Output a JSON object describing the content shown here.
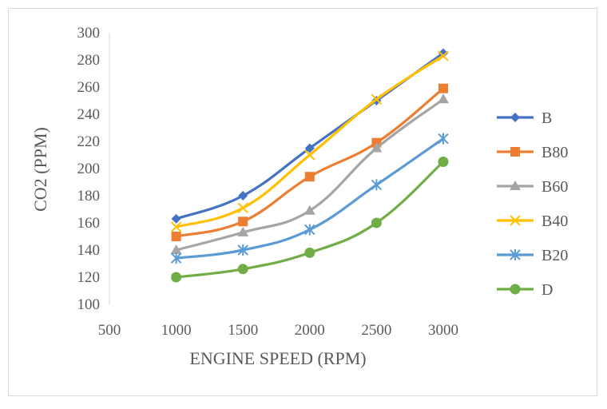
{
  "chart_data": {
    "type": "line",
    "xlabel": "ENGINE SPEED (RPM)",
    "ylabel": "CO2 (PPM)",
    "xlim": [
      500,
      3000
    ],
    "ylim": [
      100,
      300
    ],
    "x_ticks": [
      "500",
      "1000",
      "1500",
      "2000",
      "2500",
      "3000"
    ],
    "y_ticks": [
      "100",
      "120",
      "140",
      "160",
      "180",
      "200",
      "220",
      "240",
      "260",
      "280",
      "300"
    ],
    "x": [
      1000,
      1500,
      2000,
      2500,
      3000
    ],
    "legend_position": "right",
    "grid": false,
    "series": [
      {
        "name": "B",
        "values": [
          163,
          180,
          215,
          250,
          285
        ],
        "color": "#4472C4",
        "marker": "diamond"
      },
      {
        "name": "B80",
        "values": [
          150,
          161,
          194,
          219,
          259
        ],
        "color": "#ED7D31",
        "marker": "square"
      },
      {
        "name": "B60",
        "values": [
          140,
          153,
          169,
          215,
          251
        ],
        "color": "#A5A5A5",
        "marker": "triangle"
      },
      {
        "name": "B40",
        "values": [
          157,
          171,
          210,
          251,
          283
        ],
        "color": "#FFC000",
        "marker": "x"
      },
      {
        "name": "B20",
        "values": [
          134,
          140,
          155,
          188,
          222
        ],
        "color": "#5B9BD5",
        "marker": "asterisk"
      },
      {
        "name": "D",
        "values": [
          120,
          126,
          138,
          160,
          205
        ],
        "color": "#70AD47",
        "marker": "circle"
      }
    ]
  }
}
